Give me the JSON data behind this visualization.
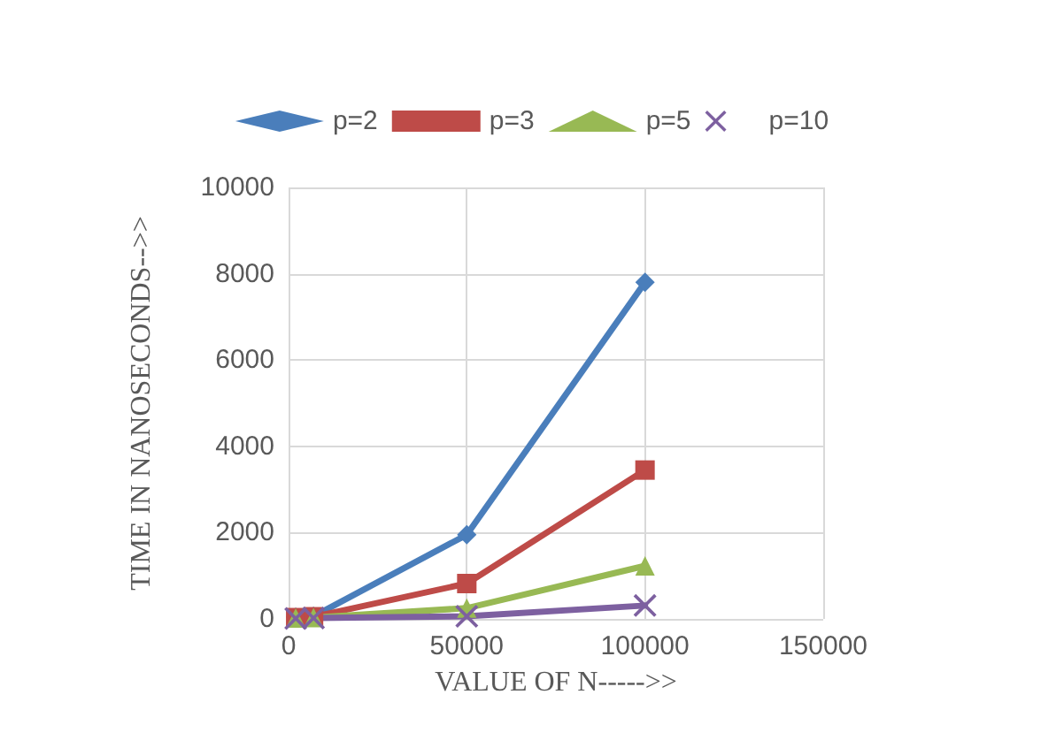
{
  "chart_data": {
    "type": "line",
    "xlabel": "VALUE OF N----->>",
    "ylabel": "TIME IN NANOSECONDS-->>",
    "x": [
      2000,
      7000,
      50000,
      100000
    ],
    "series": [
      {
        "name": "p=2",
        "color": "#4a7ebb",
        "marker": "diamond",
        "values": [
          40,
          60,
          1950,
          7800
        ]
      },
      {
        "name": "p=3",
        "color": "#be4b48",
        "marker": "square",
        "values": [
          30,
          50,
          820,
          3450
        ]
      },
      {
        "name": "p=5",
        "color": "#98b954",
        "marker": "triangle",
        "values": [
          20,
          30,
          250,
          1230
        ]
      },
      {
        "name": "p=10",
        "color": "#7d60a0",
        "marker": "cross",
        "values": [
          10,
          20,
          60,
          310
        ]
      }
    ],
    "xlim": [
      0,
      150000
    ],
    "xticks": [
      0,
      50000,
      100000,
      150000
    ],
    "ylim": [
      0,
      10000
    ],
    "yticks": [
      0,
      2000,
      4000,
      6000,
      8000,
      10000
    ],
    "grid": true,
    "legend": "top",
    "line_style": "solid"
  }
}
